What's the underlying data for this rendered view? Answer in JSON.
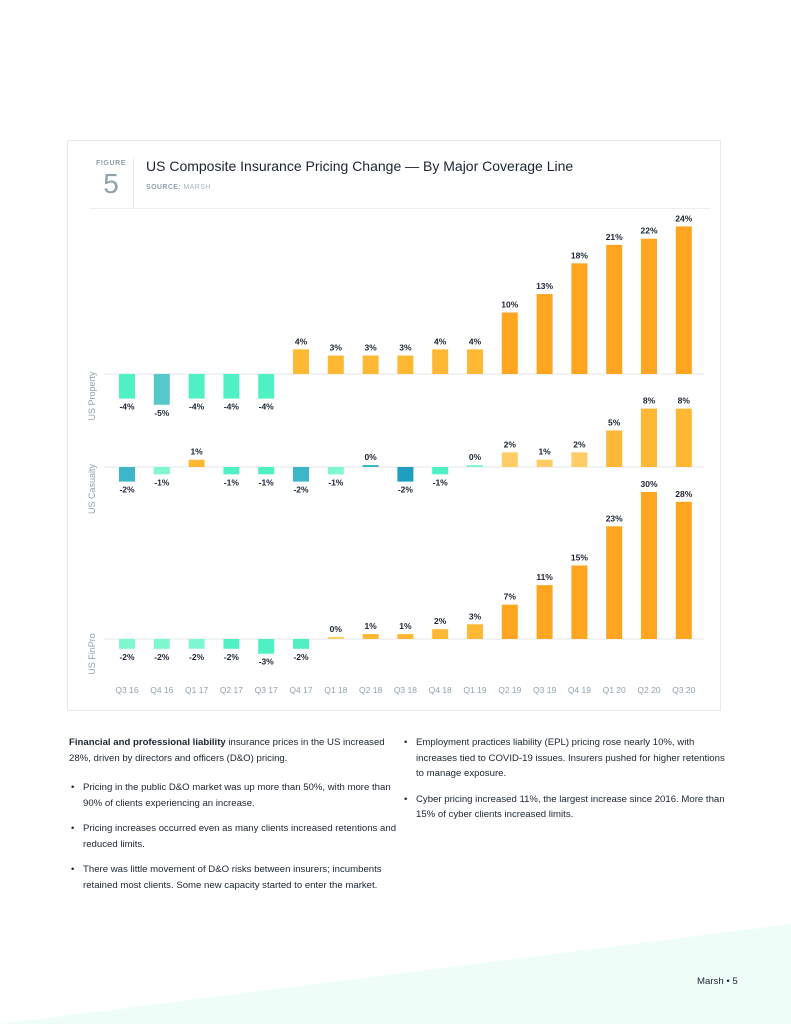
{
  "figure": {
    "label": "FIGURE",
    "number": "5",
    "title": "US Composite Insurance Pricing Change — By Major Coverage Line",
    "source_label": "SOURCE:",
    "source_value": "MARSH"
  },
  "colors": {
    "orange_deep": "#ffa51f",
    "orange_mid": "#ffb833",
    "orange_light": "#ffcc66",
    "teal_dark": "#1e9ec0",
    "teal": "#3db6c8",
    "teal_soft": "#56c8cc",
    "mint": "#4ef0c4",
    "mint_light": "#7ff7d0",
    "axis_text": "#8ea3ad",
    "label_text": "#1b2533",
    "baseline": "#e3e7ea",
    "footer_wedge": "#effdf8"
  },
  "chart_data": {
    "type": "bar",
    "title": "US Composite Insurance Pricing Change — By Major Coverage Line",
    "source": "Marsh",
    "categories": [
      "Q3 16",
      "Q4 16",
      "Q1 17",
      "Q2 17",
      "Q3 17",
      "Q4 17",
      "Q1 18",
      "Q2 18",
      "Q3 18",
      "Q4 18",
      "Q1 19",
      "Q2 19",
      "Q3 19",
      "Q4 19",
      "Q1 20",
      "Q2 20",
      "Q3 20"
    ],
    "value_suffix": "%",
    "series": [
      {
        "name": "US Property",
        "values": [
          -4,
          -5,
          -4,
          -4,
          -4,
          4,
          3,
          3,
          3,
          4,
          4,
          10,
          13,
          18,
          21,
          22,
          24
        ],
        "bar_colors": [
          "mint",
          "teal_soft",
          "mint",
          "mint",
          "mint",
          "orange_mid",
          "orange_mid",
          "orange_mid",
          "orange_mid",
          "orange_mid",
          "orange_mid",
          "orange_deep",
          "orange_deep",
          "orange_deep",
          "orange_deep",
          "orange_deep",
          "orange_deep"
        ]
      },
      {
        "name": "US Casualty",
        "values": [
          -2,
          -1,
          1,
          -1,
          -1,
          -2,
          -1,
          0,
          -2,
          -1,
          0,
          2,
          1,
          2,
          5,
          8,
          8
        ],
        "bar_colors": [
          "teal",
          "mint_light",
          "orange_mid",
          "mint",
          "mint",
          "teal",
          "mint_light",
          "teal",
          "teal_dark",
          "mint",
          "mint_light",
          "orange_light",
          "orange_light",
          "orange_light",
          "orange_mid",
          "orange_mid",
          "orange_mid"
        ]
      },
      {
        "name": "US FinPro",
        "values": [
          -2,
          -2,
          -2,
          -2,
          -3,
          -2,
          0,
          1,
          1,
          2,
          3,
          7,
          11,
          15,
          23,
          30,
          28
        ],
        "bar_colors": [
          "mint_light",
          "mint_light",
          "mint_light",
          "mint",
          "mint",
          "mint",
          "orange_light",
          "orange_mid",
          "orange_mid",
          "orange_mid",
          "orange_mid",
          "orange_deep",
          "orange_deep",
          "orange_deep",
          "orange_deep",
          "orange_deep",
          "orange_deep"
        ]
      }
    ],
    "xlabel": "",
    "ylabel": "",
    "grid": false,
    "legend": "none",
    "panel_labels": [
      "US Property",
      "US Casualty",
      "US FinPro"
    ]
  },
  "text": {
    "intro_bold": "Financial and professional liability",
    "intro_rest": " insurance prices in the US increased 28%, driven by directors and officers (D&O) pricing.",
    "left_bullets": [
      "Pricing in the public D&O market was up more than 50%, with more than 90% of clients experiencing an increase.",
      "Pricing increases occurred even as many clients increased retentions and reduced limits.",
      "There was little movement of D&O risks between insurers; incumbents retained most clients. Some new capacity started to enter the market."
    ],
    "right_bullets": [
      "Employment practices liability (EPL) pricing rose nearly 10%, with increases tied to COVID-19 issues. Insurers pushed for higher retentions to manage exposure.",
      "Cyber pricing increased 11%, the largest increase since 2016. More than 15% of cyber clients increased limits."
    ]
  },
  "footer": {
    "text": "Marsh • 5"
  }
}
